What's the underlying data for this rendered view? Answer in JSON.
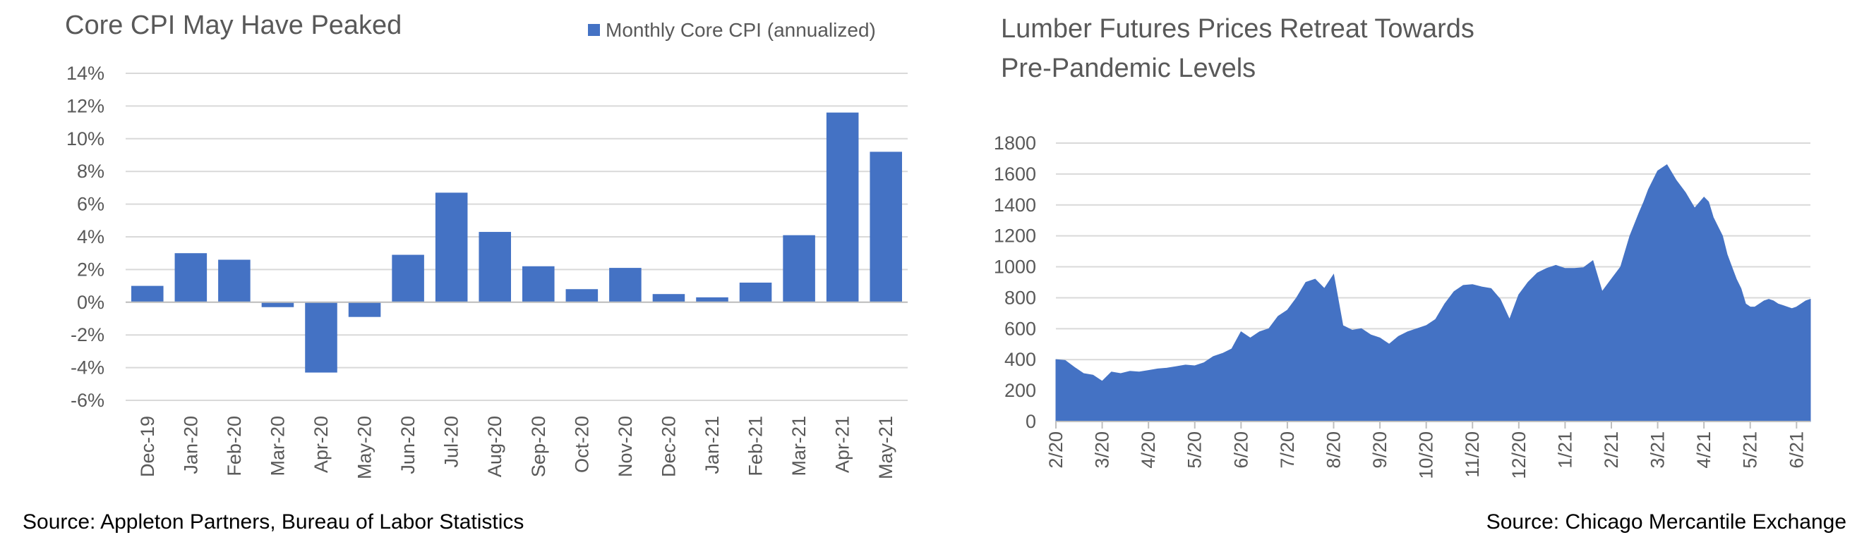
{
  "charts": {
    "cpi": {
      "title": "Core CPI May Have Peaked",
      "source": "Source: Appleton Partners, Bureau of Labor Statistics"
    },
    "lumber": {
      "title_line1": "Lumber Futures Prices Retreat Towards",
      "title_line2": "Pre-Pandemic Levels",
      "source": "Source: Chicago Mercantile Exchange"
    }
  },
  "chart_data": [
    {
      "type": "bar",
      "title": "Core CPI May Have Peaked",
      "xlabel": "",
      "ylabel": "",
      "ylim": [
        -6,
        14
      ],
      "yticks": [
        -6,
        -4,
        -2,
        0,
        2,
        4,
        6,
        8,
        10,
        12,
        14
      ],
      "ytick_labels": [
        "-6%",
        "-4%",
        "-2%",
        "0%",
        "2%",
        "4%",
        "6%",
        "8%",
        "10%",
        "12%",
        "14%"
      ],
      "grid": true,
      "legend": "top-right",
      "categories": [
        "Dec-19",
        "Jan-20",
        "Feb-20",
        "Mar-20",
        "Apr-20",
        "May-20",
        "Jun-20",
        "Jul-20",
        "Aug-20",
        "Sep-20",
        "Oct-20",
        "Nov-20",
        "Dec-20",
        "Jan-21",
        "Feb-21",
        "Mar-21",
        "Apr-21",
        "May-21"
      ],
      "series": [
        {
          "name": "Monthly Core CPI (annualized)",
          "color": "#4472C4",
          "values": [
            1.0,
            3.0,
            2.6,
            -0.3,
            -4.3,
            -0.9,
            2.9,
            6.7,
            4.3,
            2.2,
            0.8,
            2.1,
            0.5,
            0.3,
            1.2,
            4.1,
            11.6,
            9.2
          ]
        }
      ]
    },
    {
      "type": "area",
      "title": "Lumber Futures Prices Retreat Towards Pre-Pandemic Levels",
      "xlabel": "",
      "ylabel": "",
      "ylim": [
        0,
        1800
      ],
      "yticks": [
        0,
        200,
        400,
        600,
        800,
        1000,
        1200,
        1400,
        1600,
        1800
      ],
      "grid": true,
      "x_tick_labels": [
        "2/20",
        "3/20",
        "4/20",
        "5/20",
        "6/20",
        "7/20",
        "8/20",
        "9/20",
        "10/20",
        "11/20",
        "12/20",
        "1/21",
        "2/21",
        "3/21",
        "4/21",
        "5/21",
        "6/21"
      ],
      "x_range_months": [
        0,
        16.3
      ],
      "series": [
        {
          "name": "",
          "color": "#4472C4",
          "x": [
            0,
            0.2,
            0.4,
            0.6,
            0.8,
            1.0,
            1.1,
            1.2,
            1.4,
            1.6,
            1.8,
            2.0,
            2.2,
            2.4,
            2.6,
            2.8,
            3.0,
            3.2,
            3.4,
            3.6,
            3.8,
            4.0,
            4.2,
            4.4,
            4.6,
            4.8,
            5.0,
            5.2,
            5.4,
            5.6,
            5.8,
            6.0,
            6.2,
            6.4,
            6.6,
            6.8,
            7.0,
            7.1,
            7.2,
            7.4,
            7.6,
            7.8,
            8.0,
            8.2,
            8.4,
            8.6,
            8.8,
            9.0,
            9.2,
            9.4,
            9.6,
            9.8,
            10.0,
            10.2,
            10.4,
            10.6,
            10.8,
            11.0,
            11.2,
            11.4,
            11.6,
            11.8,
            12.0,
            12.2,
            12.4,
            12.6,
            12.7,
            12.8,
            13.0,
            13.2,
            13.4,
            13.6,
            13.8,
            14.0,
            14.1,
            14.2,
            14.3,
            14.4,
            14.5,
            14.6,
            14.7,
            14.8,
            14.9,
            15.0,
            15.1,
            15.2,
            15.3,
            15.4,
            15.5,
            15.6,
            15.7,
            15.8,
            15.9,
            16.0,
            16.1,
            16.2,
            16.3
          ],
          "values": [
            400,
            395,
            350,
            310,
            300,
            260,
            290,
            320,
            310,
            325,
            320,
            330,
            340,
            345,
            355,
            365,
            360,
            380,
            420,
            440,
            470,
            580,
            540,
            580,
            600,
            680,
            720,
            800,
            900,
            920,
            860,
            950,
            620,
            590,
            600,
            560,
            540,
            520,
            500,
            550,
            580,
            600,
            620,
            660,
            760,
            840,
            880,
            885,
            870,
            860,
            790,
            660,
            820,
            900,
            960,
            990,
            1010,
            990,
            990,
            995,
            1040,
            840,
            920,
            1000,
            1200,
            1350,
            1420,
            1500,
            1620,
            1660,
            1560,
            1480,
            1380,
            1450,
            1420,
            1320,
            1260,
            1200,
            1080,
            1000,
            920,
            860,
            760,
            740,
            740,
            760,
            780,
            790,
            780,
            760,
            750,
            740,
            730,
            740,
            760,
            780,
            790
          ]
        }
      ]
    }
  ]
}
